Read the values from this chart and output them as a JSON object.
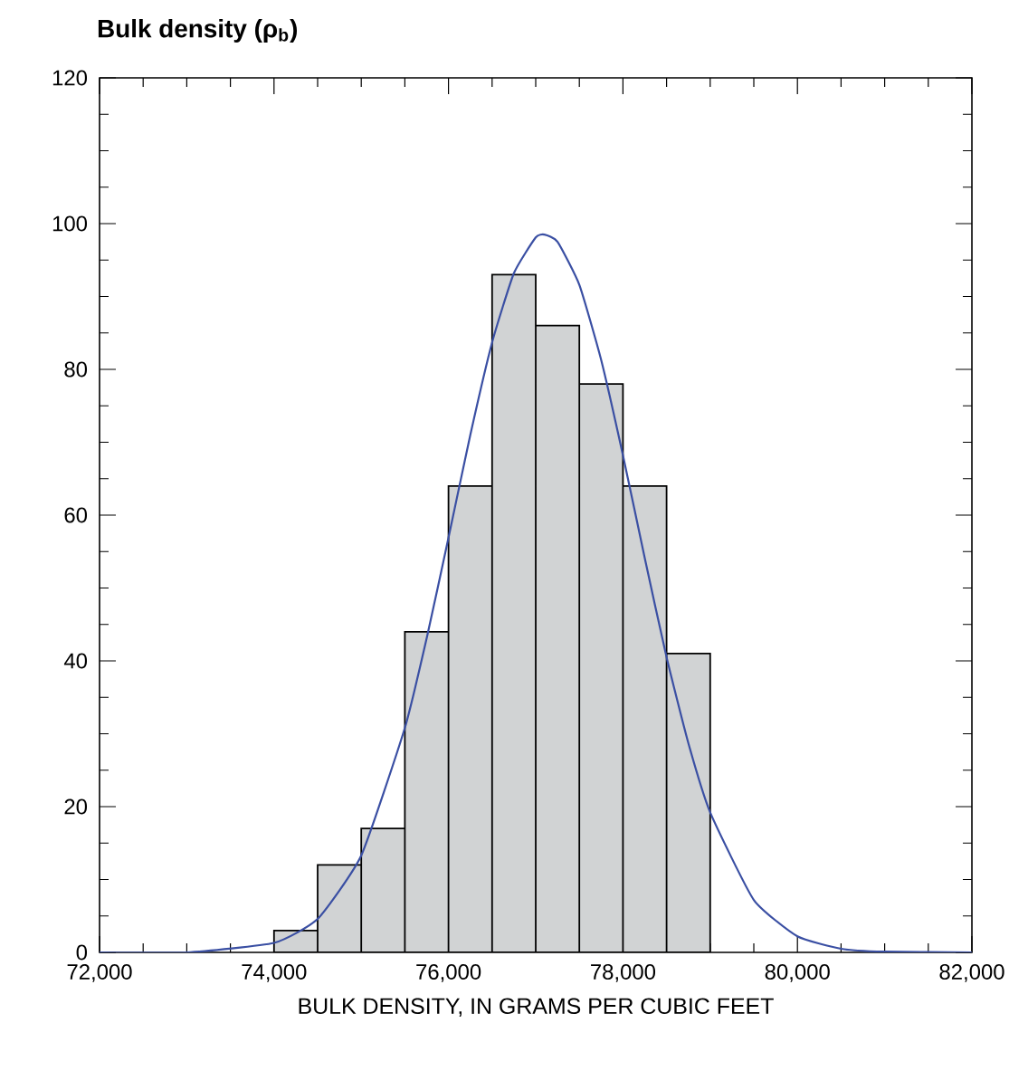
{
  "chart_data": {
    "type": "histogram",
    "title": "Bulk density (ρ$_{b}$)",
    "xlabel": "BULK DENSITY, IN GRAMS PER CUBIC FEET",
    "series": [
      {
        "color": "#d1d3d4",
        "bins": [
          74000,
          74500,
          75000,
          75500,
          76000,
          76500,
          77000,
          77500,
          78000,
          78500,
          79000
        ],
        "values": [
          3,
          12,
          17,
          44,
          64,
          93,
          86,
          78,
          64,
          41
        ]
      },
      {
        "type": "line",
        "color": "#3a4fa3",
        "x": [
          72000,
          73000,
          74000,
          74500,
          75000,
          75500,
          75750,
          76000,
          76250,
          76500,
          76750,
          77000,
          77100,
          77250,
          77500,
          77750,
          78000,
          78250,
          78500,
          78750,
          79000,
          79500,
          80000,
          80500,
          81000,
          82000
        ],
        "values": [
          0,
          0,
          1.3,
          4.6,
          13.3,
          30.8,
          43.1,
          56.9,
          71.0,
          83.7,
          93.2,
          98.1,
          98.5,
          97.5,
          91.6,
          81.3,
          68.2,
          54.1,
          40.5,
          28.7,
          19.2,
          7.2,
          2.2,
          0.5,
          0.1,
          0
        ]
      }
    ],
    "xlim": [
      72000,
      82000
    ],
    "ylim": [
      0,
      120
    ],
    "xticks": [
      {
        "value": 72000,
        "label": "72,000"
      },
      {
        "value": 72500,
        "label": null
      },
      {
        "value": 73000,
        "label": null
      },
      {
        "value": 73500,
        "label": null
      },
      {
        "value": 74000,
        "label": "74,000"
      },
      {
        "value": 74500,
        "label": null
      },
      {
        "value": 75000,
        "label": null
      },
      {
        "value": 75500,
        "label": null
      },
      {
        "value": 76000,
        "label": "76,000"
      },
      {
        "value": 76500,
        "label": null
      },
      {
        "value": 77000,
        "label": null
      },
      {
        "value": 77500,
        "label": null
      },
      {
        "value": 78000,
        "label": "78,000"
      },
      {
        "value": 78500,
        "label": null
      },
      {
        "value": 79000,
        "label": null
      },
      {
        "value": 79500,
        "label": null
      },
      {
        "value": 80000,
        "label": "80,000"
      },
      {
        "value": 80500,
        "label": null
      },
      {
        "value": 81000,
        "label": null
      },
      {
        "value": 81500,
        "label": null
      },
      {
        "value": 82000,
        "label": "82,000"
      }
    ],
    "yticks": [
      0,
      {
        "value": 5,
        "label": null
      },
      {
        "value": 10,
        "label": null
      },
      {
        "value": 15,
        "label": null
      },
      20,
      {
        "value": 25,
        "label": null
      },
      {
        "value": 30,
        "label": null
      },
      {
        "value": 35,
        "label": null
      },
      40,
      {
        "value": 45,
        "label": null
      },
      {
        "value": 50,
        "label": null
      },
      {
        "value": 55,
        "label": null
      },
      60,
      {
        "value": 65,
        "label": null
      },
      {
        "value": 70,
        "label": null
      },
      {
        "value": 75,
        "label": null
      },
      80,
      {
        "value": 85,
        "label": null
      },
      {
        "value": 90,
        "label": null
      },
      {
        "value": 95,
        "label": null
      },
      100,
      {
        "value": 105,
        "label": null
      },
      {
        "value": 110,
        "label": null
      },
      {
        "value": 115,
        "label": null
      },
      120
    ],
    "grid": false
  }
}
